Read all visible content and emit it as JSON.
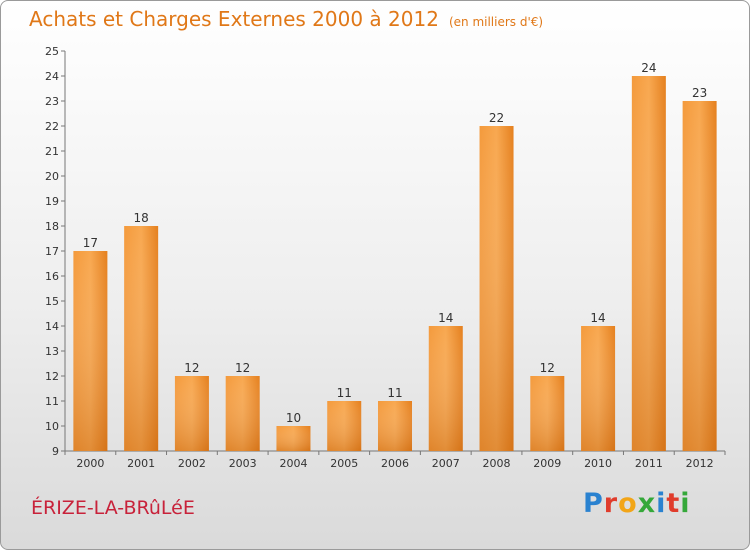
{
  "chart_data": {
    "type": "bar",
    "title": "Achats et Charges Externes 2000 à 2012",
    "subtitle": "(en milliers d'€)",
    "categories": [
      "2000",
      "2001",
      "2002",
      "2003",
      "2004",
      "2005",
      "2006",
      "2007",
      "2008",
      "2009",
      "2010",
      "2011",
      "2012"
    ],
    "values": [
      17,
      18,
      12,
      12,
      10,
      11,
      11,
      14,
      22,
      12,
      14,
      24,
      23
    ],
    "ylim": [
      9,
      25
    ],
    "yticks": [
      9,
      10,
      11,
      12,
      13,
      14,
      15,
      16,
      17,
      18,
      19,
      20,
      21,
      22,
      23,
      24,
      25
    ],
    "grid": false,
    "bar_color": "#f08a2c",
    "xlabel": "",
    "ylabel": ""
  },
  "footer": {
    "town": "ÉRIZE-LA-BRûLéE",
    "logo": "Proxiti",
    "logo_letters": [
      "P",
      "r",
      "o",
      "x",
      "i",
      "t",
      "i"
    ]
  }
}
